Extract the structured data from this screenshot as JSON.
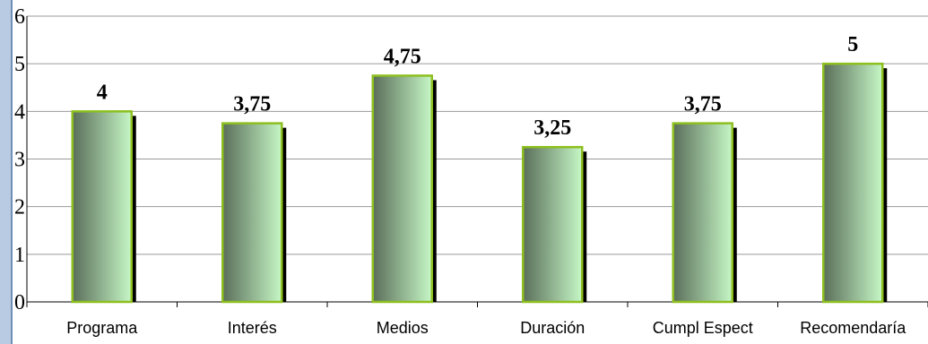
{
  "chart_data": {
    "type": "bar",
    "title": "",
    "xlabel": "",
    "ylabel": "",
    "ylim": [
      0,
      6
    ],
    "yticks": [
      0,
      1,
      2,
      3,
      4,
      5,
      6
    ],
    "grid": true,
    "legend": "none",
    "categories": [
      "Programa",
      "Interés",
      "Medios",
      "Duración",
      "Cumpl Espect",
      "Recomendaría"
    ],
    "values": [
      4,
      3.75,
      4.75,
      3.25,
      3.75,
      5
    ],
    "data_labels": [
      "4",
      "3,75",
      "4,75",
      "3,25",
      "3,75",
      "5"
    ],
    "colors": {
      "bar_dark": "#5a6e5a",
      "bar_light": "#c6f7c6",
      "bar_outline": "#8dbf1e",
      "bar_shadow": "#000000",
      "grid": "#9a9a9a",
      "axis": "#000000"
    }
  }
}
